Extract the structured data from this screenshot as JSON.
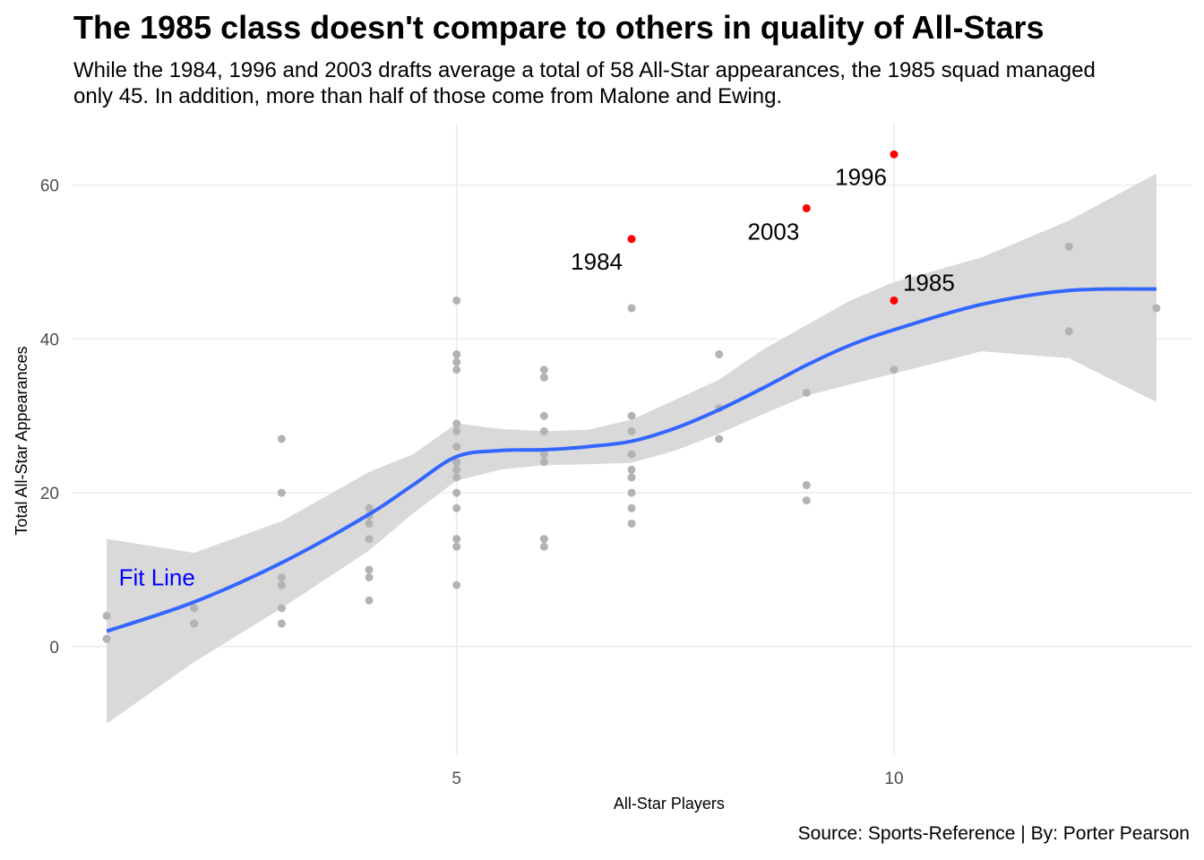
{
  "title": "The 1985 class doesn't compare to others in quality of All-Stars",
  "subtitle": "While the 1984, 1996 and 2003 drafts average a total of 58 All-Star appearances, the 1985 squad managed\nonly 45. In addition, more than half of those come from Malone and Ewing.",
  "caption": "Source: Sports-Reference | By: Porter Pearson",
  "chart_data": {
    "type": "scatter",
    "xlabel": "All-Star Players",
    "ylabel": "Total All-Star Appearances",
    "xlim": [
      0.6,
      13.4
    ],
    "ylim": [
      -14,
      68
    ],
    "x_ticks": [
      5,
      10
    ],
    "y_ticks": [
      0,
      20,
      40,
      60
    ],
    "grid": true,
    "colors": {
      "points": "#b3b3b3",
      "highlight": "#ff0000",
      "fit": "#3366ff",
      "ribbon": "#d9d9d9",
      "fit_label": "#0000ff"
    },
    "points": [
      {
        "x": 1,
        "y": 4
      },
      {
        "x": 1,
        "y": 1
      },
      {
        "x": 2,
        "y": 5
      },
      {
        "x": 2,
        "y": 3
      },
      {
        "x": 3,
        "y": 27
      },
      {
        "x": 3,
        "y": 20
      },
      {
        "x": 3,
        "y": 9
      },
      {
        "x": 3,
        "y": 8
      },
      {
        "x": 3,
        "y": 5
      },
      {
        "x": 3,
        "y": 3
      },
      {
        "x": 4,
        "y": 18
      },
      {
        "x": 4,
        "y": 17
      },
      {
        "x": 4,
        "y": 16
      },
      {
        "x": 4,
        "y": 14
      },
      {
        "x": 4,
        "y": 10
      },
      {
        "x": 4,
        "y": 9
      },
      {
        "x": 4,
        "y": 6
      },
      {
        "x": 5,
        "y": 45
      },
      {
        "x": 5,
        "y": 38
      },
      {
        "x": 5,
        "y": 37
      },
      {
        "x": 5,
        "y": 36
      },
      {
        "x": 5,
        "y": 29
      },
      {
        "x": 5,
        "y": 28
      },
      {
        "x": 5,
        "y": 26
      },
      {
        "x": 5,
        "y": 24
      },
      {
        "x": 5,
        "y": 23
      },
      {
        "x": 5,
        "y": 22
      },
      {
        "x": 5,
        "y": 20
      },
      {
        "x": 5,
        "y": 18
      },
      {
        "x": 5,
        "y": 14
      },
      {
        "x": 5,
        "y": 13
      },
      {
        "x": 5,
        "y": 8
      },
      {
        "x": 6,
        "y": 36
      },
      {
        "x": 6,
        "y": 35
      },
      {
        "x": 6,
        "y": 30
      },
      {
        "x": 6,
        "y": 28
      },
      {
        "x": 6,
        "y": 25
      },
      {
        "x": 6,
        "y": 24
      },
      {
        "x": 6,
        "y": 14
      },
      {
        "x": 6,
        "y": 13
      },
      {
        "x": 7,
        "y": 44
      },
      {
        "x": 7,
        "y": 30
      },
      {
        "x": 7,
        "y": 28
      },
      {
        "x": 7,
        "y": 25
      },
      {
        "x": 7,
        "y": 23
      },
      {
        "x": 7,
        "y": 22
      },
      {
        "x": 7,
        "y": 20
      },
      {
        "x": 7,
        "y": 18
      },
      {
        "x": 7,
        "y": 16
      },
      {
        "x": 8,
        "y": 38
      },
      {
        "x": 8,
        "y": 31
      },
      {
        "x": 8,
        "y": 27
      },
      {
        "x": 9,
        "y": 33
      },
      {
        "x": 9,
        "y": 21
      },
      {
        "x": 9,
        "y": 19
      },
      {
        "x": 10,
        "y": 36
      },
      {
        "x": 12,
        "y": 52
      },
      {
        "x": 12,
        "y": 41
      },
      {
        "x": 13,
        "y": 44
      }
    ],
    "highlight": [
      {
        "x": 7,
        "y": 53,
        "label": "1984",
        "anchor": "end",
        "dx": -10,
        "dy": 34
      },
      {
        "x": 9,
        "y": 57,
        "label": "2003",
        "anchor": "end",
        "dx": -8,
        "dy": 35
      },
      {
        "x": 10,
        "y": 64,
        "label": "1996",
        "anchor": "end",
        "dx": -8,
        "dy": 34
      },
      {
        "x": 10,
        "y": 45,
        "label": "1985",
        "anchor": "start",
        "dx": 10,
        "dy": -11
      }
    ],
    "fit_line": {
      "x": [
        1,
        2,
        3,
        4,
        4.5,
        5,
        5.5,
        6,
        6.5,
        7,
        7.5,
        8,
        8.5,
        9,
        9.5,
        10,
        11,
        12,
        13
      ],
      "y": [
        2,
        5.8,
        10.9,
        17.2,
        21,
        24.7,
        25.5,
        25.6,
        26,
        26.7,
        28.4,
        30.8,
        33.6,
        36.6,
        39.2,
        41.2,
        44.5,
        46.3,
        46.5
      ],
      "lo": [
        -10,
        -2,
        5,
        12.5,
        17.3,
        21.6,
        23,
        23.6,
        23.7,
        23.9,
        25.5,
        27.7,
        30.2,
        32.6,
        34.1,
        35.5,
        38.4,
        37.5,
        31.8
      ],
      "hi": [
        14,
        12.2,
        16.3,
        22.7,
        25,
        29,
        28.3,
        28,
        28.2,
        29.5,
        32.1,
        34.7,
        38.6,
        41.8,
        45,
        47.4,
        50.6,
        55.4,
        61.5
      ]
    },
    "fit_label": {
      "text": "Fit Line",
      "x": 1.2,
      "y": 9
    }
  }
}
